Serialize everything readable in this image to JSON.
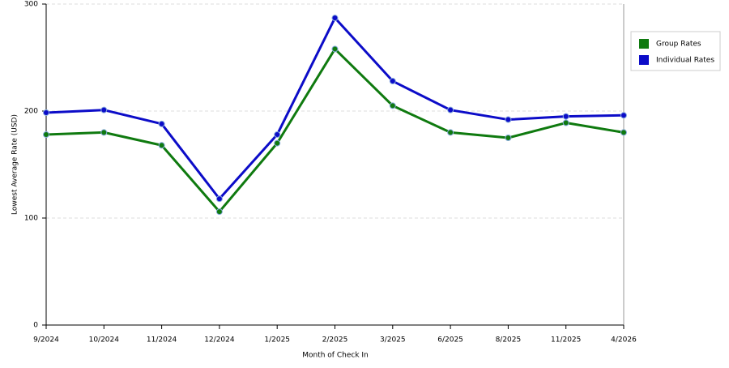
{
  "chart_data": {
    "type": "line",
    "x_label": "Month of Check In",
    "y_label": "Lowest Average Rate (USD)",
    "categories": [
      "9/2024",
      "10/2024",
      "11/2024",
      "12/2024",
      "1/2025",
      "2/2025",
      "3/2025",
      "6/2025",
      "8/2025",
      "11/2025",
      "4/2026"
    ],
    "series": [
      {
        "name": "Group Rates",
        "color": "#0f7a0f",
        "values": [
          178,
          180,
          168,
          106,
          170,
          258,
          205,
          180,
          175,
          189,
          180
        ]
      },
      {
        "name": "Individual Rates",
        "color": "#0c0cc8",
        "values": [
          198.5,
          201,
          188,
          118,
          178,
          287,
          228,
          201,
          192,
          195,
          196
        ]
      }
    ],
    "ylim": [
      0,
      300
    ],
    "yticks": [
      0,
      100,
      200,
      300
    ],
    "grid": true,
    "legend": "right"
  }
}
